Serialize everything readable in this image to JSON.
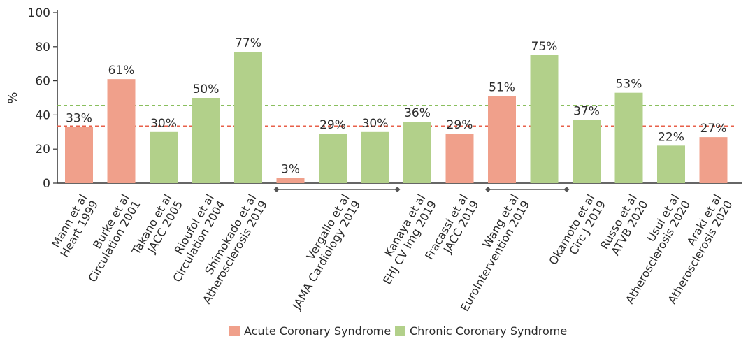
{
  "chart_data": {
    "type": "bar",
    "ylabel": "%",
    "ylim": [
      0,
      100
    ],
    "yticks": [
      0,
      20,
      40,
      60,
      80,
      100
    ],
    "grid": false,
    "legend_position": "bottom",
    "series": [
      {
        "name": "Acute Coronary Syndrome",
        "color": "#f0a08b"
      },
      {
        "name": "Chronic Coronary Syndrome",
        "color": "#b2d08a"
      }
    ],
    "bars": [
      {
        "label": [
          "Mann et al",
          "Heart 1999"
        ],
        "value": 33,
        "value_label": "33%",
        "series": 0
      },
      {
        "label": [
          "Burke et al",
          "Circulation 2001"
        ],
        "value": 61,
        "value_label": "61%",
        "series": 0
      },
      {
        "label": [
          "Takano et al",
          "JACC 2005"
        ],
        "value": 30,
        "value_label": "30%",
        "series": 1
      },
      {
        "label": [
          "Rioufol et al",
          "Circulation 2004"
        ],
        "value": 50,
        "value_label": "50%",
        "series": 1
      },
      {
        "label": [
          "Shimokado et al",
          "Atherosclerosis 2019"
        ],
        "value": 77,
        "value_label": "77%",
        "series": 1
      },
      {
        "label": [
          "Vergallo et al",
          "JAMA Cardiology 2019"
        ],
        "value": 3,
        "value_label": "3%",
        "series": 0
      },
      {
        "label": [],
        "value": 29,
        "value_label": "29%",
        "series": 1
      },
      {
        "label": [],
        "value": 30,
        "value_label": "30%",
        "series": 1
      },
      {
        "label": [
          "Kanaya et al",
          "EHJ CV Img 2019"
        ],
        "value": 36,
        "value_label": "36%",
        "series": 1
      },
      {
        "label": [
          "Fracassi et al",
          "JACC 2019"
        ],
        "value": 29,
        "value_label": "29%",
        "series": 0
      },
      {
        "label": [
          "Wang et al",
          "EuroIntervention 2019"
        ],
        "value": 51,
        "value_label": "51%",
        "series": 0
      },
      {
        "label": [],
        "value": 75,
        "value_label": "75%",
        "series": 1
      },
      {
        "label": [
          "Okamoto et al",
          "Circ J 2019"
        ],
        "value": 37,
        "value_label": "37%",
        "series": 1
      },
      {
        "label": [
          "Russo et al",
          "ATVB 2020"
        ],
        "value": 53,
        "value_label": "53%",
        "series": 1
      },
      {
        "label": [
          "Usui et al",
          "Atherosclerosis 2020"
        ],
        "value": 22,
        "value_label": "22%",
        "series": 1
      },
      {
        "label": [
          "Araki et al",
          "Atherosclerosis 2020"
        ],
        "value": 27,
        "value_label": "27%",
        "series": 0
      }
    ],
    "reference_lines": [
      {
        "value": 45.5,
        "color": "#7ab648",
        "series": 1
      },
      {
        "value": 33.5,
        "color": "#e8604a",
        "series": 0
      }
    ],
    "group_brackets": [
      {
        "from_bar": 5,
        "to_bar": 7
      },
      {
        "from_bar": 10,
        "to_bar": 11
      }
    ]
  }
}
